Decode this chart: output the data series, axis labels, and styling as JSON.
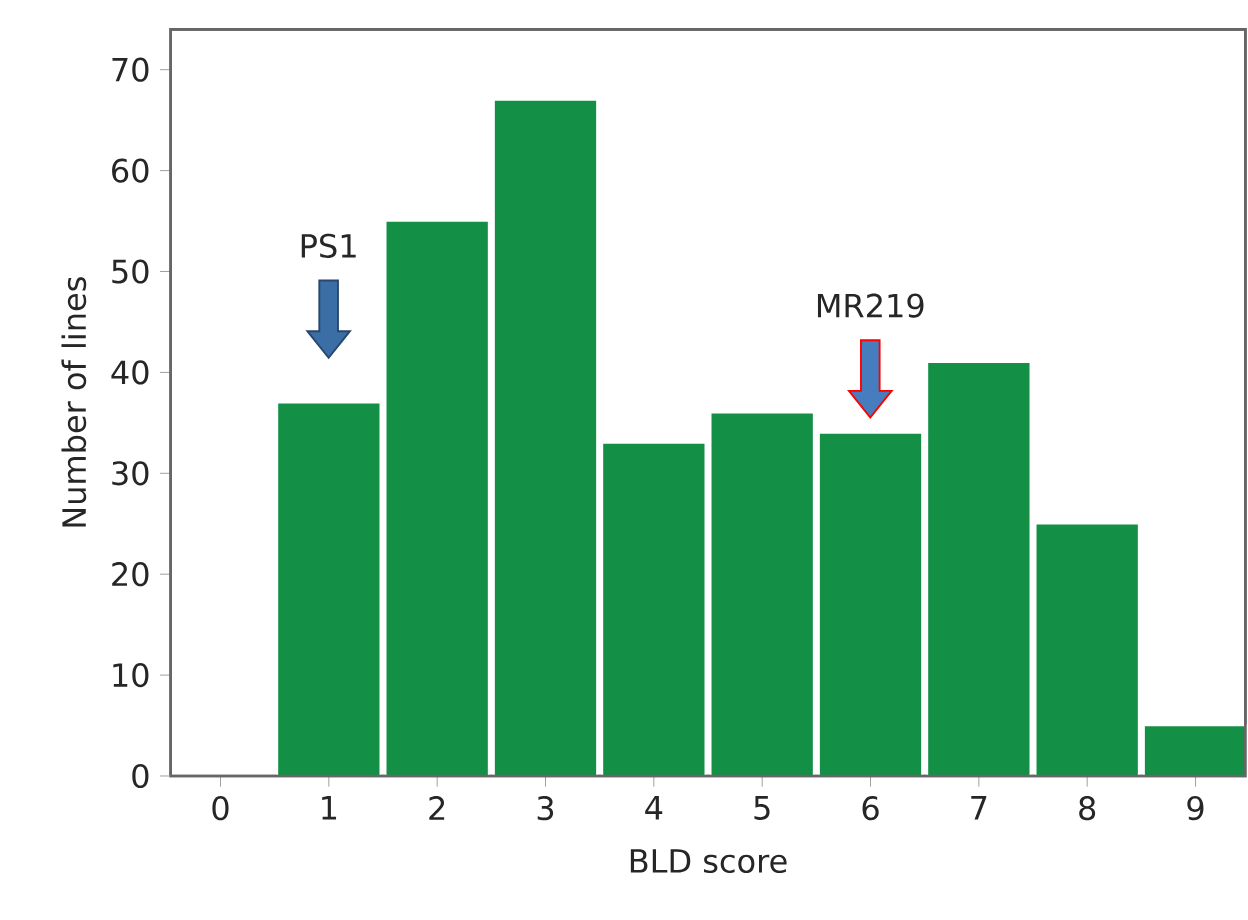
{
  "chart_data": {
    "type": "bar",
    "xlabel": "BLD score",
    "ylabel": "Number of lines",
    "categories": [
      "0",
      "1",
      "2",
      "3",
      "4",
      "5",
      "6",
      "7",
      "8",
      "9"
    ],
    "values": [
      0,
      37,
      55,
      67,
      33,
      36,
      34,
      41,
      25,
      5
    ],
    "color": "#138f46",
    "ylim": [
      0,
      74
    ],
    "yticks": [
      0,
      10,
      20,
      30,
      40,
      50,
      60,
      70
    ],
    "grid": false,
    "annotations": [
      "PS1",
      "MR219"
    ]
  }
}
